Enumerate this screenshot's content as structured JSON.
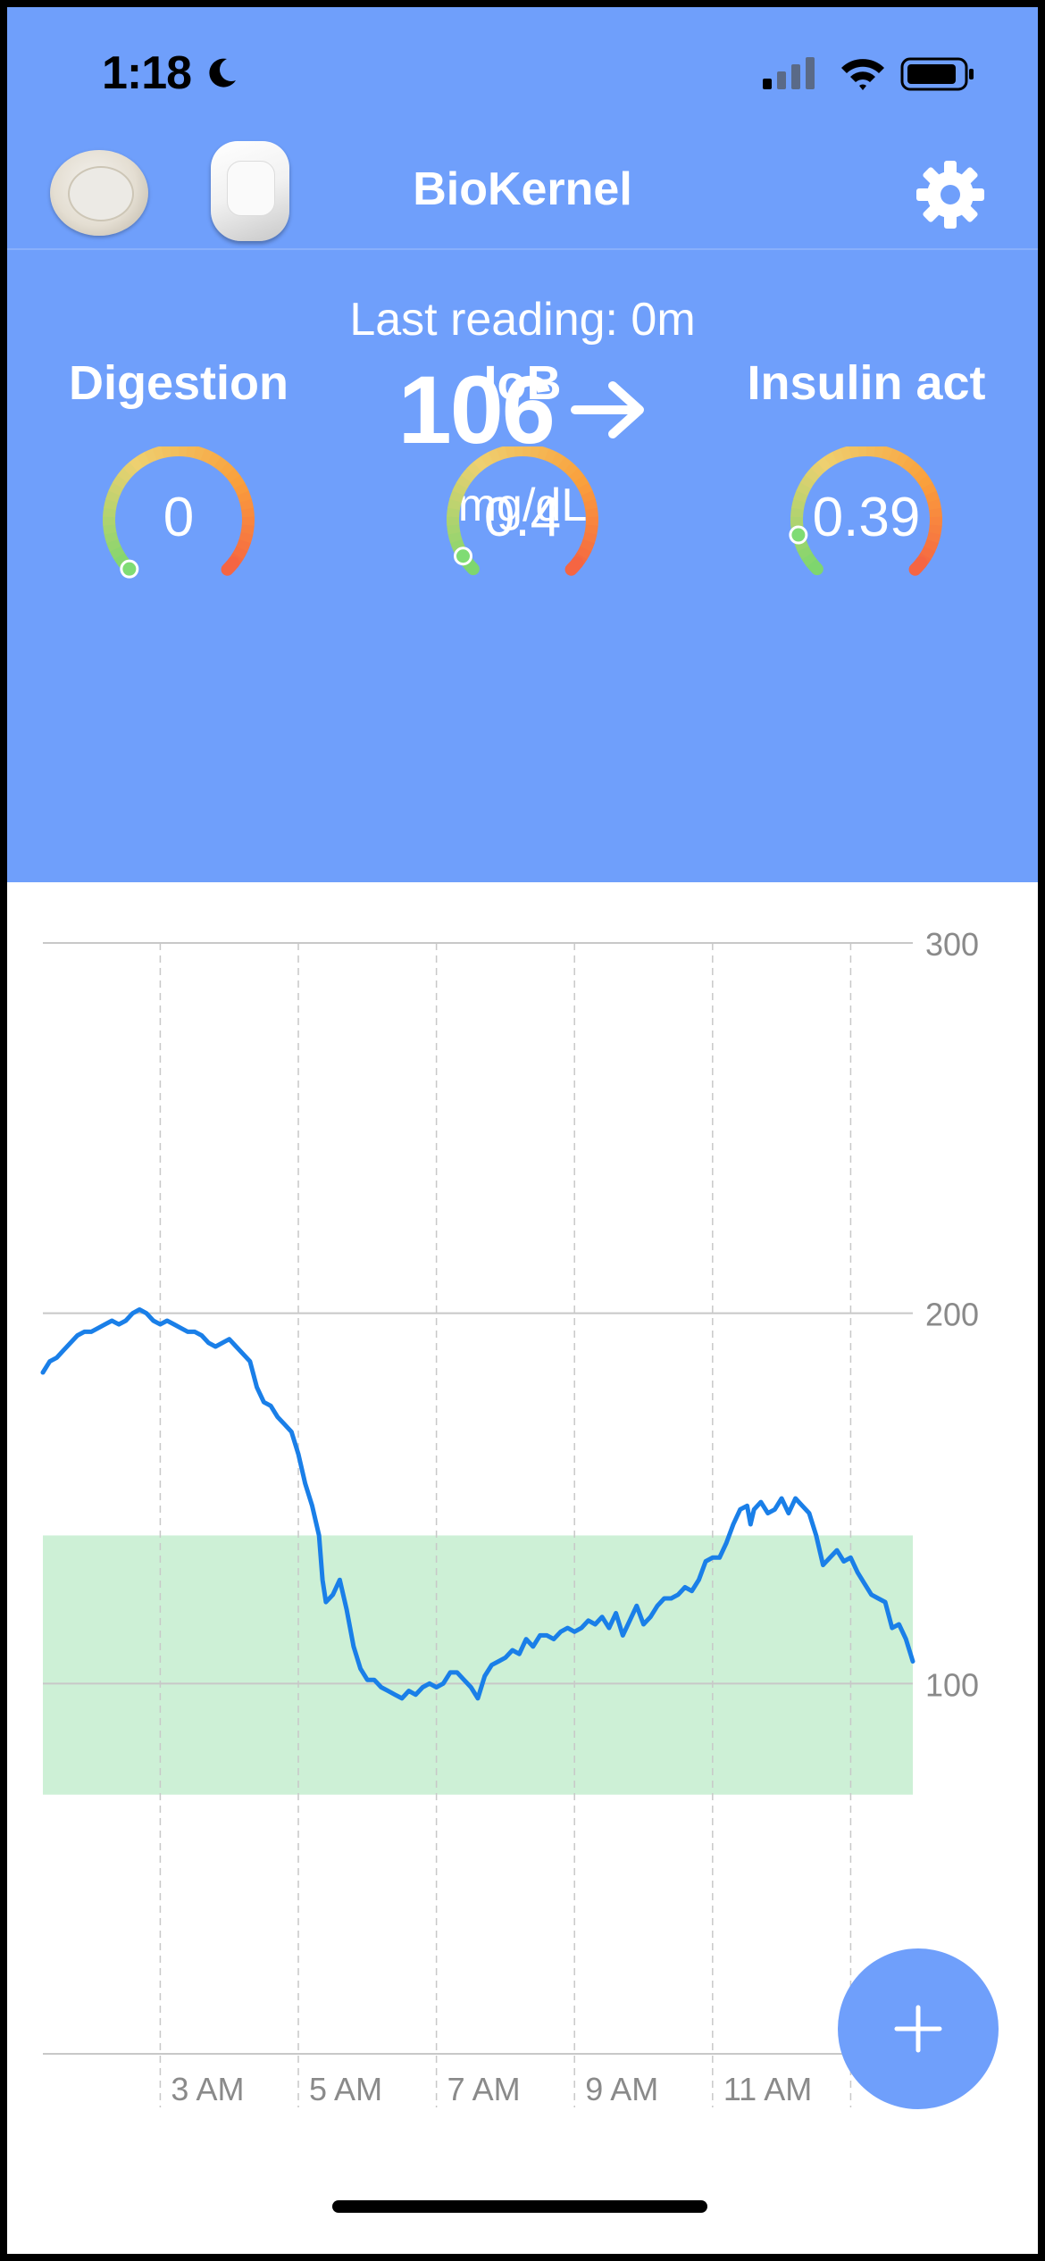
{
  "status_bar": {
    "time": "1:18",
    "icons": [
      "moon-icon",
      "cellular-signal-icon",
      "wifi-icon",
      "battery-icon"
    ]
  },
  "header": {
    "title": "BioKernel",
    "left_devices": [
      "cgm-sensor-icon",
      "insulin-pod-icon"
    ],
    "right_icon": "gear-icon",
    "background_color": "#6f9ffb"
  },
  "reading": {
    "last_reading_label": "Last reading: 0m",
    "value": "106",
    "trend_icon": "arrow-right-icon",
    "unit": "mg/dL"
  },
  "gauges": [
    {
      "title": "Digestion",
      "value": "0",
      "fraction": 0.0
    },
    {
      "title": "IoB",
      "value": "0.4",
      "fraction": 0.05
    },
    {
      "title": "Insulin act",
      "value": "0.39",
      "fraction": 0.12
    }
  ],
  "chart_data": {
    "type": "line",
    "y_ticks": [
      "300",
      "200",
      "100"
    ],
    "x_ticks": [
      "3 AM",
      "5 AM",
      "7 AM",
      "9 AM",
      "11 AM"
    ],
    "ylim": [
      0,
      300
    ],
    "target_range": [
      70,
      140
    ],
    "grid": true,
    "line_color": "#1a7fe8",
    "range_color": "#cdf0d6",
    "series": [
      {
        "values": [
          [
            0.0,
            184
          ],
          [
            0.1,
            187
          ],
          [
            0.2,
            188
          ],
          [
            0.3,
            190
          ],
          [
            0.4,
            192
          ],
          [
            0.5,
            194
          ],
          [
            0.6,
            195
          ],
          [
            0.7,
            195
          ],
          [
            0.8,
            196
          ],
          [
            0.9,
            197
          ],
          [
            1.0,
            198
          ],
          [
            1.1,
            197
          ],
          [
            1.2,
            198
          ],
          [
            1.3,
            200
          ],
          [
            1.4,
            201
          ],
          [
            1.5,
            200
          ],
          [
            1.6,
            198
          ],
          [
            1.7,
            197
          ],
          [
            1.8,
            198
          ],
          [
            1.9,
            197
          ],
          [
            2.0,
            196
          ],
          [
            2.1,
            195
          ],
          [
            2.2,
            195
          ],
          [
            2.3,
            194
          ],
          [
            2.4,
            192
          ],
          [
            2.5,
            191
          ],
          [
            2.6,
            192
          ],
          [
            2.7,
            193
          ],
          [
            2.8,
            191
          ],
          [
            2.9,
            189
          ],
          [
            3.0,
            187
          ],
          [
            3.1,
            180
          ],
          [
            3.2,
            176
          ],
          [
            3.3,
            175
          ],
          [
            3.4,
            172
          ],
          [
            3.5,
            170
          ],
          [
            3.6,
            168
          ],
          [
            3.7,
            162
          ],
          [
            3.8,
            154
          ],
          [
            3.9,
            148
          ],
          [
            4.0,
            140
          ],
          [
            4.05,
            128
          ],
          [
            4.1,
            122
          ],
          [
            4.2,
            124
          ],
          [
            4.3,
            128
          ],
          [
            4.4,
            120
          ],
          [
            4.5,
            110
          ],
          [
            4.6,
            104
          ],
          [
            4.7,
            101
          ],
          [
            4.8,
            101
          ],
          [
            4.9,
            99
          ],
          [
            5.0,
            98
          ],
          [
            5.1,
            97
          ],
          [
            5.2,
            96
          ],
          [
            5.3,
            98
          ],
          [
            5.4,
            97
          ],
          [
            5.5,
            99
          ],
          [
            5.6,
            100
          ],
          [
            5.7,
            99
          ],
          [
            5.8,
            100
          ],
          [
            5.9,
            103
          ],
          [
            6.0,
            103
          ],
          [
            6.1,
            101
          ],
          [
            6.2,
            99
          ],
          [
            6.3,
            96
          ],
          [
            6.4,
            102
          ],
          [
            6.5,
            105
          ],
          [
            6.6,
            106
          ],
          [
            6.7,
            107
          ],
          [
            6.8,
            109
          ],
          [
            6.9,
            108
          ],
          [
            7.0,
            112
          ],
          [
            7.1,
            110
          ],
          [
            7.2,
            113
          ],
          [
            7.3,
            113
          ],
          [
            7.4,
            112
          ],
          [
            7.5,
            114
          ],
          [
            7.6,
            115
          ],
          [
            7.7,
            114
          ],
          [
            7.8,
            115
          ],
          [
            7.9,
            117
          ],
          [
            8.0,
            116
          ],
          [
            8.1,
            118
          ],
          [
            8.2,
            115
          ],
          [
            8.3,
            119
          ],
          [
            8.4,
            113
          ],
          [
            8.5,
            117
          ],
          [
            8.6,
            121
          ],
          [
            8.7,
            116
          ],
          [
            8.8,
            118
          ],
          [
            8.9,
            121
          ],
          [
            9.0,
            123
          ],
          [
            9.1,
            123
          ],
          [
            9.2,
            124
          ],
          [
            9.3,
            126
          ],
          [
            9.4,
            125
          ],
          [
            9.5,
            128
          ],
          [
            9.6,
            133
          ],
          [
            9.7,
            134
          ],
          [
            9.8,
            134
          ],
          [
            9.9,
            138
          ],
          [
            10.0,
            143
          ],
          [
            10.1,
            147
          ],
          [
            10.2,
            148
          ],
          [
            10.25,
            143
          ],
          [
            10.3,
            147
          ],
          [
            10.4,
            149
          ],
          [
            10.5,
            146
          ],
          [
            10.6,
            147
          ],
          [
            10.7,
            150
          ],
          [
            10.8,
            146
          ],
          [
            10.9,
            150
          ],
          [
            11.0,
            148
          ],
          [
            11.1,
            146
          ],
          [
            11.2,
            140
          ],
          [
            11.3,
            132
          ],
          [
            11.4,
            134
          ],
          [
            11.5,
            136
          ],
          [
            11.6,
            133
          ],
          [
            11.7,
            134
          ],
          [
            11.8,
            130
          ],
          [
            11.9,
            127
          ],
          [
            12.0,
            124
          ],
          [
            12.1,
            123
          ],
          [
            12.2,
            122
          ],
          [
            12.3,
            115
          ],
          [
            12.4,
            116
          ],
          [
            12.5,
            112
          ],
          [
            12.6,
            106
          ]
        ]
      }
    ]
  },
  "fab": {
    "icon": "plus-icon"
  }
}
